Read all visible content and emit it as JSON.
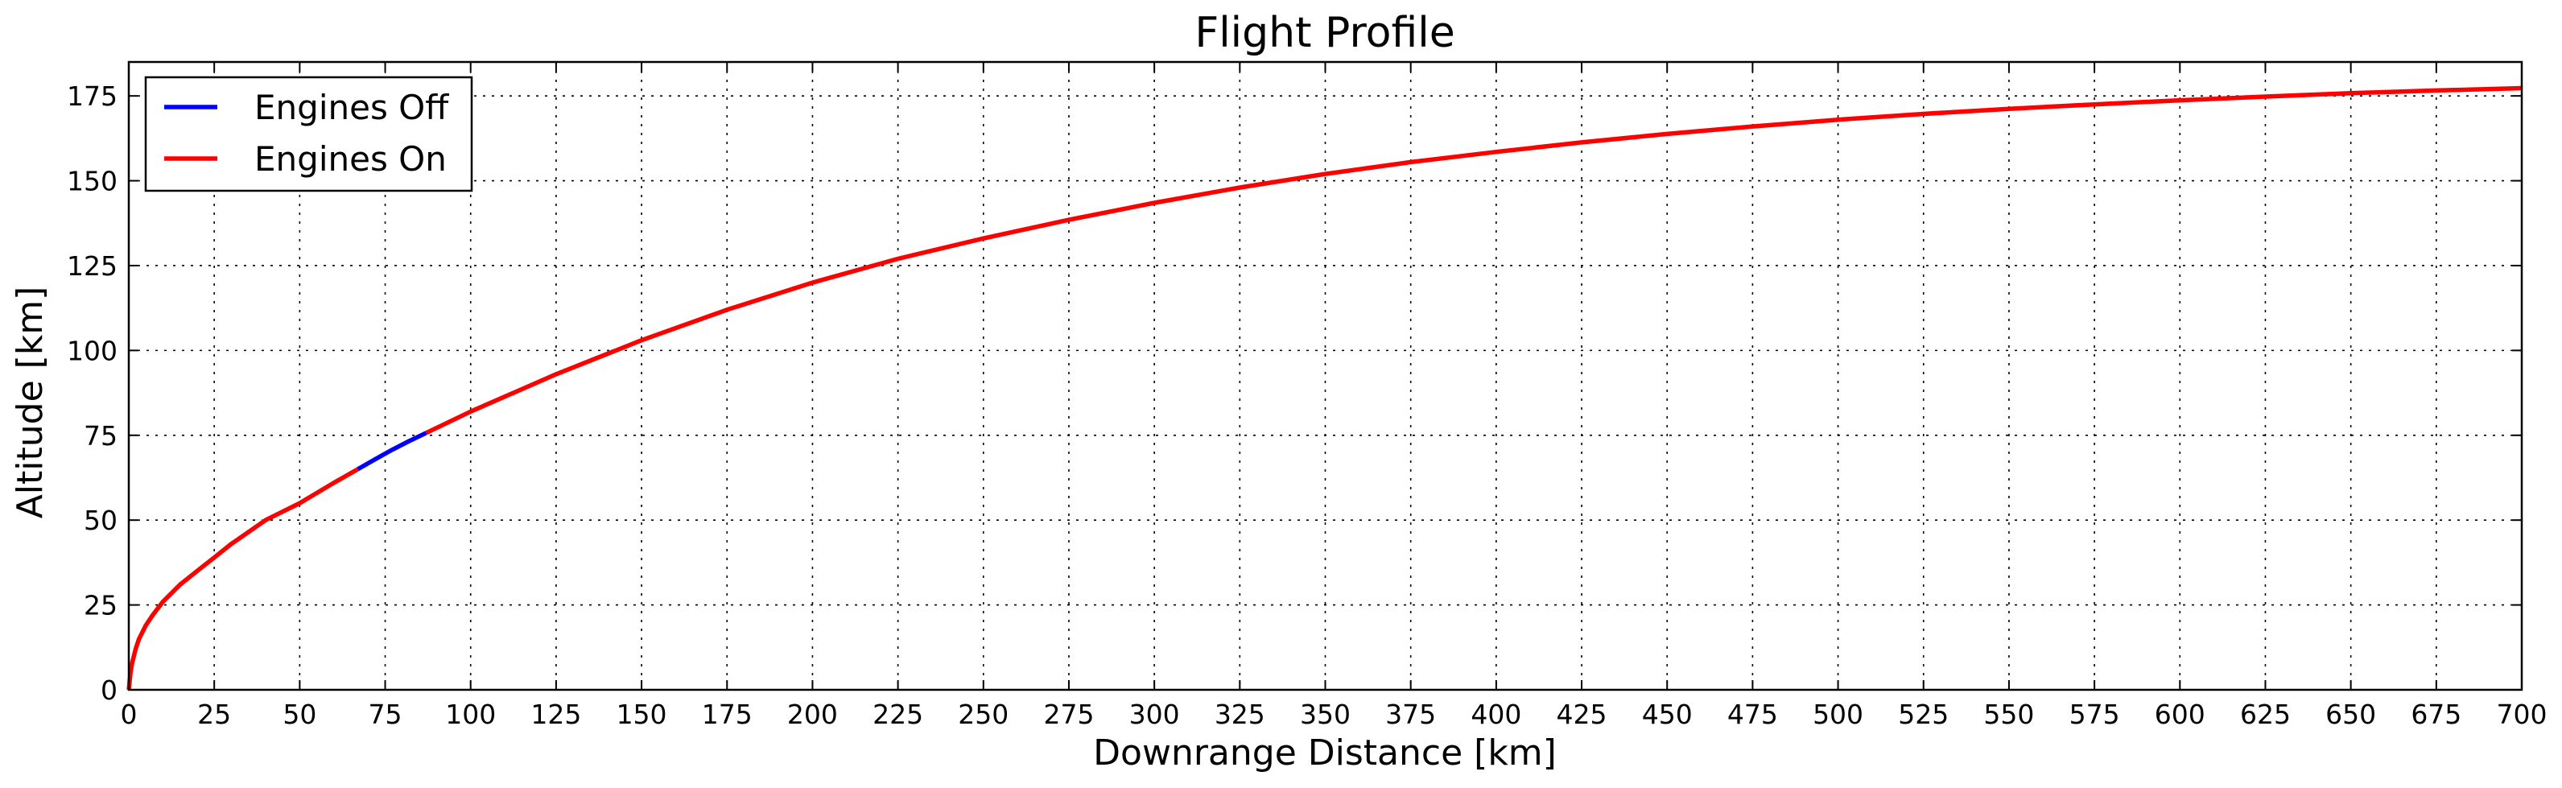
{
  "chart_data": {
    "type": "line",
    "title": "Flight Profile",
    "xlabel": "Downrange Distance [km]",
    "ylabel": "Altitude [km]",
    "xlim": [
      0,
      700
    ],
    "ylim": [
      0,
      185
    ],
    "x_ticks": [
      0,
      25,
      50,
      75,
      100,
      125,
      150,
      175,
      200,
      225,
      250,
      275,
      300,
      325,
      350,
      375,
      400,
      425,
      450,
      475,
      500,
      525,
      550,
      575,
      600,
      625,
      650,
      675,
      700
    ],
    "y_ticks": [
      0,
      25,
      50,
      75,
      100,
      125,
      150,
      175
    ],
    "grid": true,
    "legend_position": "top-left",
    "series": [
      {
        "name": "Engines Off",
        "color": "#0000ff",
        "points": [
          [
            67,
            65
          ],
          [
            72,
            67.9
          ],
          [
            77,
            70.7
          ],
          [
            82,
            73.3
          ],
          [
            87,
            75.7
          ]
        ]
      },
      {
        "name": "Engines On",
        "color": "#ff0000",
        "segments": [
          [
            [
              0,
              0
            ],
            [
              0.5,
              5
            ],
            [
              1,
              8
            ],
            [
              2,
              12
            ],
            [
              3,
              15
            ],
            [
              5,
              19
            ],
            [
              7,
              22
            ],
            [
              10,
              26
            ],
            [
              15,
              31
            ],
            [
              20,
              35
            ],
            [
              25,
              39
            ],
            [
              30,
              43
            ],
            [
              40,
              50
            ],
            [
              50,
              55
            ],
            [
              60,
              61
            ],
            [
              67,
              65
            ]
          ],
          [
            [
              87,
              75.7
            ],
            [
              100,
              82
            ],
            [
              125,
              93
            ],
            [
              150,
              103
            ],
            [
              175,
              112
            ],
            [
              200,
              120
            ],
            [
              225,
              127
            ],
            [
              250,
              133
            ],
            [
              275,
              138.5
            ],
            [
              300,
              143.5
            ],
            [
              325,
              148
            ],
            [
              350,
              152
            ],
            [
              375,
              155.5
            ],
            [
              400,
              158.5
            ],
            [
              425,
              161.3
            ],
            [
              450,
              163.8
            ],
            [
              475,
              166
            ],
            [
              500,
              168
            ],
            [
              525,
              169.7
            ],
            [
              550,
              171.2
            ],
            [
              575,
              172.5
            ],
            [
              600,
              173.7
            ],
            [
              625,
              174.8
            ],
            [
              650,
              175.8
            ],
            [
              675,
              176.6
            ],
            [
              700,
              177.3
            ]
          ]
        ]
      }
    ]
  }
}
